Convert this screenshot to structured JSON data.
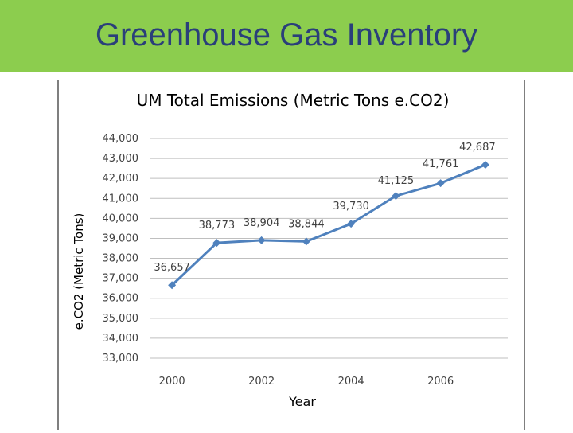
{
  "slide": {
    "title": "Greenhouse Gas Inventory",
    "colors": {
      "title_bar": "#8ccd4e",
      "title_text": "#2a3f7a"
    }
  },
  "chart_data": {
    "type": "line",
    "title": "UM Total Emissions (Metric Tons e.CO2)",
    "xlabel": "Year",
    "ylabel": "e.CO2 (Metric Tons)",
    "x": [
      2000,
      2001,
      2002,
      2003,
      2004,
      2005,
      2006,
      2007
    ],
    "x_tick_labels": [
      "2000",
      "2002",
      "2004",
      "2006"
    ],
    "ylim": [
      33000,
      44000
    ],
    "y_tick_labels": [
      "33,000",
      "34,000",
      "35,000",
      "36,000",
      "37,000",
      "38,000",
      "39,000",
      "40,000",
      "41,000",
      "42,000",
      "43,000",
      "44,000"
    ],
    "series": [
      {
        "values": [
          36657,
          38773,
          38904,
          38844,
          39730,
          41125,
          41761,
          42687
        ],
        "data_labels": [
          "36,657",
          "38,773",
          "38,904",
          "38,844",
          "39,730",
          "41,125",
          "41,761",
          "42,687"
        ],
        "color": "#4f81bd"
      }
    ],
    "grid": true,
    "legend": "none"
  }
}
